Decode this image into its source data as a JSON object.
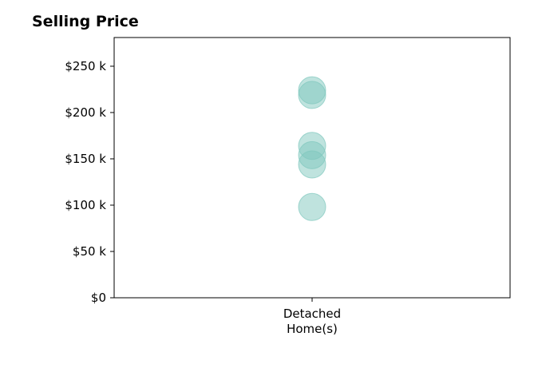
{
  "chart_data": {
    "type": "scatter",
    "title": "Selling Price",
    "categories": [
      "Detached\nHome(s)"
    ],
    "series": [
      {
        "category": "Detached\nHome(s)",
        "values": [
          224000,
          219000,
          164000,
          154000,
          144000,
          98000
        ],
        "color": "#7fc8be"
      }
    ],
    "yticks": [
      {
        "value": 0,
        "label": "$0"
      },
      {
        "value": 50000,
        "label": "$50 k"
      },
      {
        "value": 100000,
        "label": "$100 k"
      },
      {
        "value": 150000,
        "label": "$150 k"
      },
      {
        "value": 200000,
        "label": "$200 k"
      },
      {
        "value": 250000,
        "label": "$250 k"
      }
    ],
    "ylim": [
      0,
      281000
    ],
    "grid": false
  }
}
